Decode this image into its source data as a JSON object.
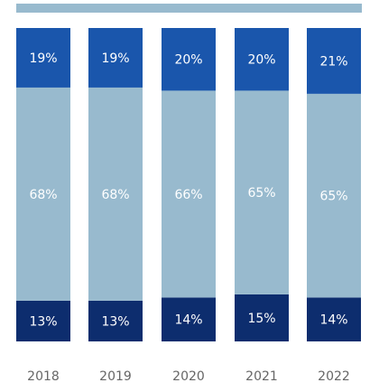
{
  "chart_data": {
    "type": "bar",
    "stacked": true,
    "normalized": true,
    "categories": [
      "2018",
      "2019",
      "2020",
      "2021",
      "2022"
    ],
    "series": [
      {
        "values": [
          13,
          13,
          14,
          15,
          14
        ],
        "labels": [
          "13%",
          "13%",
          "14%",
          "15%",
          "14%"
        ]
      },
      {
        "values": [
          68,
          68,
          66,
          65,
          65
        ],
        "labels": [
          "68%",
          "68%",
          "66%",
          "65%",
          "65%"
        ]
      },
      {
        "values": [
          19,
          19,
          20,
          20,
          21
        ],
        "labels": [
          "19%",
          "19%",
          "20%",
          "20%",
          "21%"
        ]
      }
    ],
    "colors": [
      "#0d2d6e",
      "#98bace",
      "#1a56ac"
    ],
    "legend_color": "#98bace",
    "legend": "top",
    "grid": false,
    "title": "",
    "xlabel": "",
    "ylabel": "",
    "ylim": [
      0,
      100
    ]
  }
}
